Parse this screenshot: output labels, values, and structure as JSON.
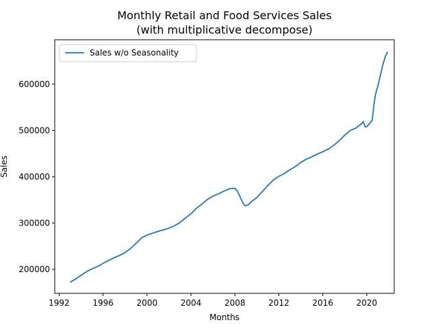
{
  "chart_data": {
    "type": "line",
    "title": "Monthly Retail and Food Services Sales",
    "subtitle": "(with multiplicative decompose)",
    "xlabel": "Months",
    "ylabel": "Sales",
    "xlim": [
      1991.6,
      2022.5
    ],
    "ylim": [
      148000,
      696000
    ],
    "x_ticks": [
      1992,
      1996,
      2000,
      2004,
      2008,
      2012,
      2016,
      2020
    ],
    "y_ticks": [
      200000,
      300000,
      400000,
      500000,
      600000
    ],
    "y_tick_labels": [
      "200000",
      "300000",
      "400000",
      "500000",
      "600000"
    ],
    "grid": false,
    "legend_position": "upper left",
    "series": [
      {
        "name": "Sales w/o Seasonality",
        "color": "#1f77b4",
        "x": [
          1993.0,
          1993.5,
          1994.0,
          1994.5,
          1995.0,
          1995.5,
          1996.0,
          1996.5,
          1997.0,
          1997.5,
          1998.0,
          1998.5,
          1999.0,
          1999.5,
          2000.0,
          2000.5,
          2001.0,
          2001.5,
          2002.0,
          2002.5,
          2003.0,
          2003.5,
          2004.0,
          2004.5,
          2005.0,
          2005.5,
          2006.0,
          2006.5,
          2007.0,
          2007.5,
          2008.0,
          2008.2,
          2008.5,
          2008.8,
          2009.0,
          2009.25,
          2009.5,
          2010.0,
          2010.5,
          2011.0,
          2011.5,
          2012.0,
          2012.5,
          2013.0,
          2013.5,
          2014.0,
          2014.5,
          2015.0,
          2015.5,
          2016.0,
          2016.5,
          2017.0,
          2017.5,
          2018.0,
          2018.5,
          2019.0,
          2019.5,
          2019.7,
          2019.85,
          2020.0,
          2020.3,
          2020.5,
          2020.65,
          2020.8,
          2021.0,
          2021.2,
          2021.5,
          2021.7,
          2021.9
        ],
        "values": [
          172000,
          179000,
          187000,
          195000,
          201000,
          206000,
          213000,
          219000,
          225000,
          230000,
          236000,
          245000,
          256000,
          268000,
          274000,
          278000,
          282000,
          285000,
          289000,
          294000,
          301000,
          311000,
          320000,
          332000,
          341000,
          351000,
          358000,
          363000,
          369000,
          374000,
          375000,
          370000,
          355000,
          340000,
          337000,
          340000,
          346000,
          355000,
          368000,
          381000,
          393000,
          401000,
          407000,
          415000,
          422000,
          431000,
          438000,
          443000,
          449000,
          454000,
          460000,
          468000,
          478000,
          490000,
          500000,
          505000,
          514000,
          519000,
          508000,
          508000,
          516000,
          522000,
          555000,
          578000,
          595000,
          615000,
          645000,
          660000,
          670000
        ]
      }
    ]
  }
}
